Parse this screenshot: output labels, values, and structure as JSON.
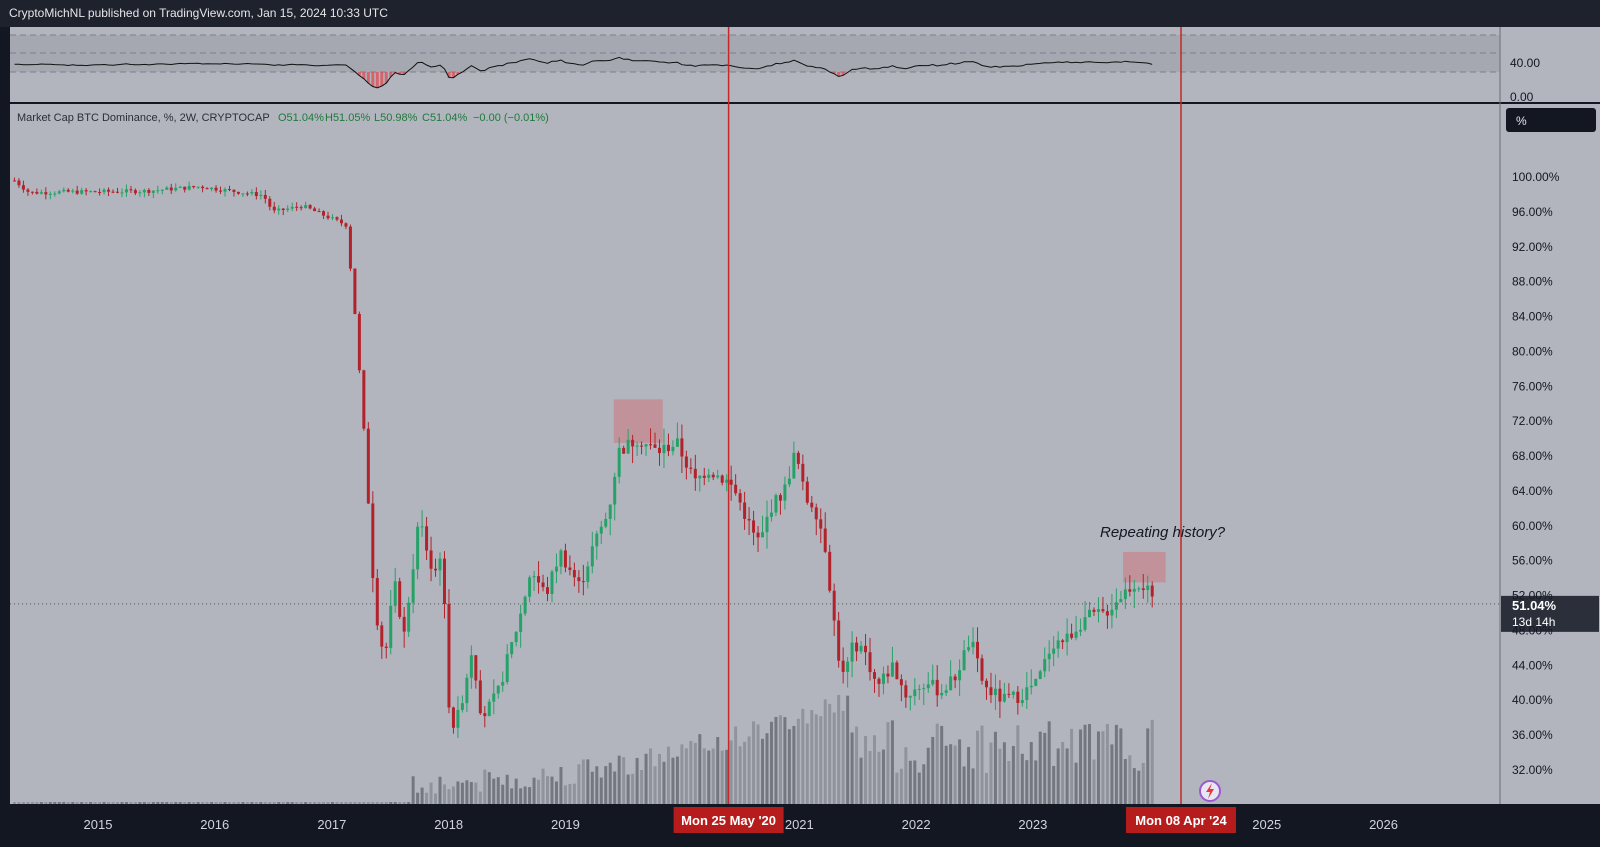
{
  "header": {
    "published_by": "CryptoMichNL published on TradingView.com, Jan 15, 2024 10:33 UTC"
  },
  "legend": {
    "symbol": "Market Cap BTC Dominance, %, 2W, CRYPTOCAP",
    "open": "O51.04%",
    "high": "H51.05%",
    "low": "L50.98%",
    "close": "C51.04%",
    "change": "−0.00 (−0.01%)"
  },
  "rsi_panel": {
    "tick_labels": [
      "40.00",
      "0.00"
    ]
  },
  "price_scale": {
    "unit_button": "%",
    "last_value": "51.04%",
    "countdown": "13d 14h"
  },
  "annotation": {
    "text": "Repeating history?"
  },
  "markers": [
    {
      "label": "Mon 25 May '20",
      "date": "2020-05-25"
    },
    {
      "label": "Mon 08 Apr '24",
      "date": "2024-04-08"
    }
  ],
  "colors": {
    "up": "#26a269",
    "down": "#b2222a",
    "background": "#b2b5be",
    "marker_line": "#c62828",
    "highlight_box": "#c48a90"
  },
  "chart_data": {
    "type": "candlestick",
    "title": "Market Cap BTC Dominance, %, 2W, CRYPTOCAP",
    "ylabel": "%",
    "ylim": [
      30,
      104
    ],
    "y_ticks": [
      "100.00%",
      "96.00%",
      "92.00%",
      "88.00%",
      "84.00%",
      "80.00%",
      "76.00%",
      "72.00%",
      "68.00%",
      "64.00%",
      "60.00%",
      "56.00%",
      "52.00%",
      "48.00%",
      "44.00%",
      "40.00%",
      "36.00%",
      "32.00%"
    ],
    "x_ticks": [
      "2015",
      "2016",
      "2017",
      "2018",
      "2019",
      "2021",
      "2022",
      "2023",
      "2025",
      "2026"
    ],
    "x_range": [
      "2014-04-01",
      "2026-12-31"
    ],
    "close_series": [
      [
        "2014-04-15",
        99.6
      ],
      [
        "2014-06-01",
        98.2
      ],
      [
        "2014-10-01",
        98.3
      ],
      [
        "2015-01-01",
        98.3
      ],
      [
        "2015-06-01",
        98.4
      ],
      [
        "2015-11-15",
        98.9
      ],
      [
        "2016-04-01",
        98.2
      ],
      [
        "2016-06-01",
        97.9
      ],
      [
        "2016-07-01",
        96.0
      ],
      [
        "2016-10-01",
        96.7
      ],
      [
        "2016-12-01",
        95.7
      ],
      [
        "2017-02-15",
        94.5
      ],
      [
        "2017-03-15",
        84.0
      ],
      [
        "2017-04-15",
        69.0
      ],
      [
        "2017-05-15",
        51.0
      ],
      [
        "2017-06-15",
        44.5
      ],
      [
        "2017-07-15",
        53.5
      ],
      [
        "2017-08-15",
        47.5
      ],
      [
        "2017-10-01",
        61.0
      ],
      [
        "2017-11-15",
        54.0
      ],
      [
        "2017-12-10",
        57.5
      ],
      [
        "2018-01-01",
        40.0
      ],
      [
        "2018-01-20",
        36.5
      ],
      [
        "2018-02-20",
        41.5
      ],
      [
        "2018-03-15",
        46.0
      ],
      [
        "2018-04-15",
        38.0
      ],
      [
        "2018-06-01",
        40.5
      ],
      [
        "2018-08-15",
        50.0
      ],
      [
        "2018-09-15",
        55.0
      ],
      [
        "2018-11-01",
        52.0
      ],
      [
        "2018-12-15",
        57.0
      ],
      [
        "2019-02-15",
        53.0
      ],
      [
        "2019-04-01",
        58.0
      ],
      [
        "2019-05-15",
        61.5
      ],
      [
        "2019-06-15",
        68.5
      ],
      [
        "2019-08-15",
        70.0
      ],
      [
        "2019-10-15",
        68.5
      ],
      [
        "2019-12-15",
        69.5
      ],
      [
        "2020-02-10",
        65.0
      ],
      [
        "2020-03-20",
        66.5
      ],
      [
        "2020-05-25",
        65.0
      ],
      [
        "2020-06-20",
        63.5
      ],
      [
        "2020-08-10",
        59.0
      ],
      [
        "2020-09-01",
        58.0
      ],
      [
        "2020-10-01",
        62.0
      ],
      [
        "2020-11-15",
        64.0
      ],
      [
        "2020-12-20",
        68.5
      ],
      [
        "2021-01-20",
        63.0
      ],
      [
        "2021-02-15",
        62.5
      ],
      [
        "2021-03-20",
        58.5
      ],
      [
        "2021-05-01",
        45.5
      ],
      [
        "2021-05-20",
        42.5
      ],
      [
        "2021-06-20",
        46.5
      ],
      [
        "2021-07-20",
        46.0
      ],
      [
        "2021-09-01",
        41.5
      ],
      [
        "2021-10-20",
        44.0
      ],
      [
        "2021-12-01",
        40.5
      ],
      [
        "2022-02-01",
        42.0
      ],
      [
        "2022-03-20",
        41.0
      ],
      [
        "2022-05-01",
        42.5
      ],
      [
        "2022-06-20",
        47.0
      ],
      [
        "2022-08-01",
        41.5
      ],
      [
        "2022-10-01",
        40.0
      ],
      [
        "2022-11-20",
        40.5
      ],
      [
        "2023-01-15",
        42.0
      ],
      [
        "2023-03-01",
        46.5
      ],
      [
        "2023-04-15",
        47.0
      ],
      [
        "2023-06-15",
        49.5
      ],
      [
        "2023-08-15",
        50.0
      ],
      [
        "2023-10-15",
        52.5
      ],
      [
        "2023-11-20",
        53.5
      ],
      [
        "2023-12-20",
        53.0
      ],
      [
        "2024-01-10",
        51.04
      ]
    ],
    "secondary_panel": {
      "type": "line",
      "y_ticks": [
        "40.00",
        "0.00"
      ]
    },
    "volume": "bars"
  }
}
